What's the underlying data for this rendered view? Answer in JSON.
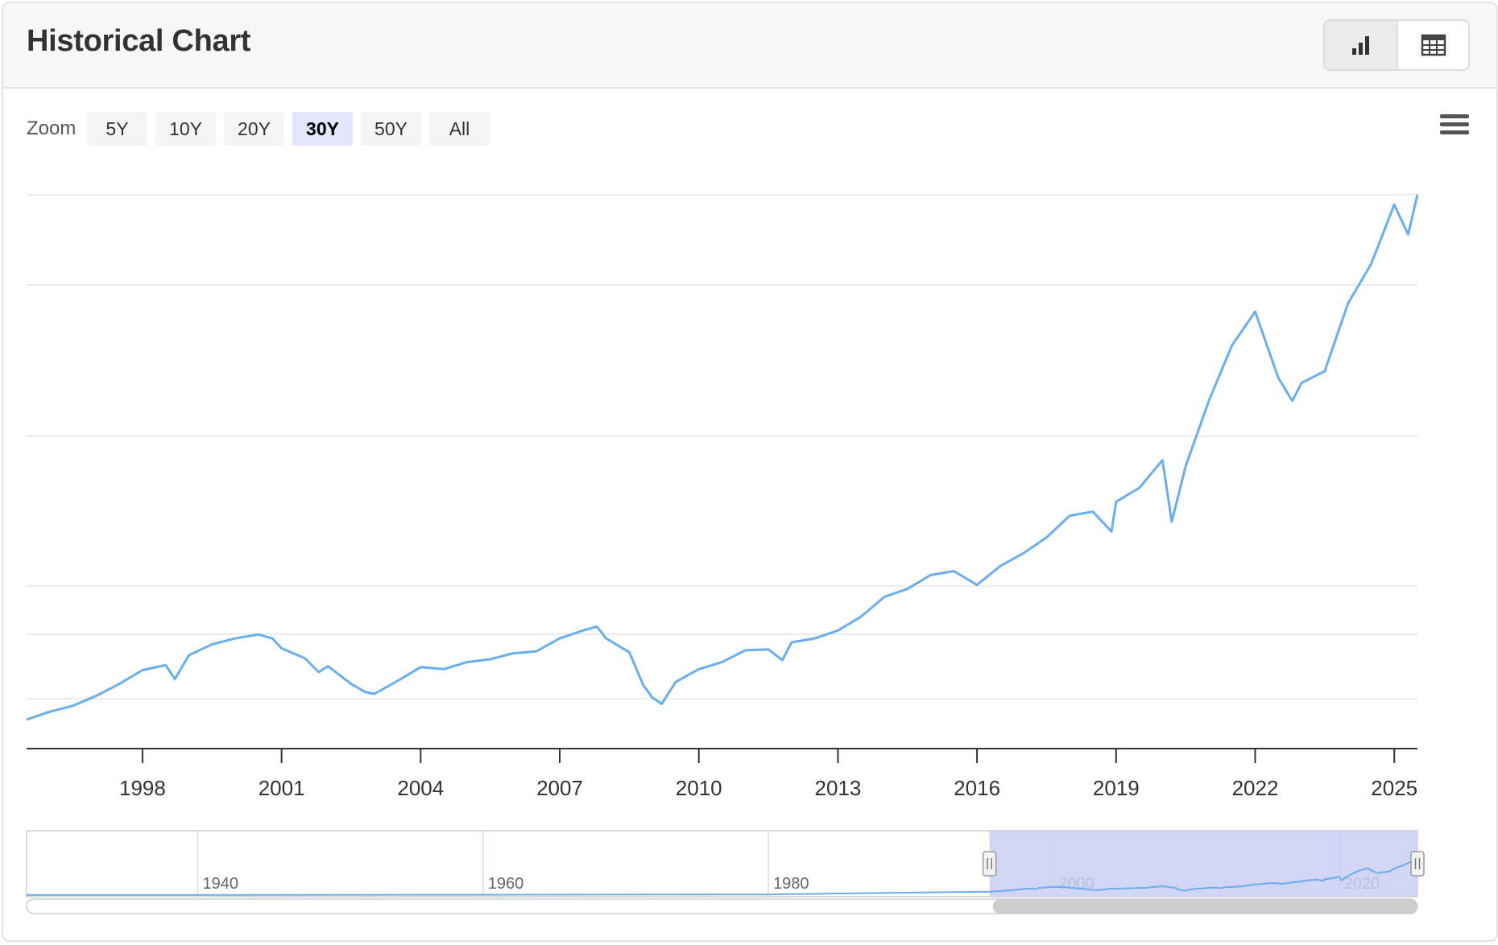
{
  "header": {
    "title": "Historical Chart",
    "view_buttons": [
      {
        "name": "chart-view",
        "icon": "bar-chart-icon"
      },
      {
        "name": "table-view",
        "icon": "table-icon"
      }
    ]
  },
  "zoom": {
    "label": "Zoom",
    "options": [
      "5Y",
      "10Y",
      "20Y",
      "30Y",
      "50Y",
      "All"
    ],
    "selected": "30Y"
  },
  "menu": {
    "icon": "hamburger-menu-icon"
  },
  "chart_data": {
    "type": "line",
    "title": "",
    "xlabel": "",
    "ylabel": "",
    "grid": true,
    "y_tick_labels_visible": false,
    "series_color": "#6aaeee",
    "x_tick_labels": [
      "1998",
      "2001",
      "2004",
      "2007",
      "2010",
      "2013",
      "2016",
      "2019",
      "2022",
      "2025"
    ],
    "x_range": [
      1995.5,
      2025.5
    ],
    "series": [
      {
        "x": [
          1995.5,
          1996.0,
          1996.5,
          1997.0,
          1997.5,
          1998.0,
          1998.5,
          1998.7,
          1999.0,
          1999.5,
          2000.0,
          2000.5,
          2000.8,
          2001.0,
          2001.5,
          2001.8,
          2002.0,
          2002.5,
          2002.8,
          2003.0,
          2003.5,
          2004.0,
          2004.5,
          2005.0,
          2005.5,
          2006.0,
          2006.5,
          2007.0,
          2007.5,
          2007.8,
          2008.0,
          2008.5,
          2008.8,
          2009.0,
          2009.2,
          2009.5,
          2010.0,
          2010.5,
          2011.0,
          2011.5,
          2011.8,
          2012.0,
          2012.5,
          2013.0,
          2013.5,
          2014.0,
          2014.5,
          2015.0,
          2015.5,
          2016.0,
          2016.5,
          2017.0,
          2017.5,
          2018.0,
          2018.5,
          2018.9,
          2019.0,
          2019.5,
          2020.0,
          2020.2,
          2020.5,
          2021.0,
          2021.5,
          2022.0,
          2022.5,
          2022.8,
          2023.0,
          2023.5,
          2024.0,
          2024.5,
          2025.0,
          2025.3,
          2025.5
        ],
        "y": [
          600,
          680,
          740,
          840,
          960,
          1100,
          1150,
          1010,
          1250,
          1360,
          1420,
          1460,
          1420,
          1320,
          1220,
          1080,
          1140,
          960,
          880,
          860,
          990,
          1130,
          1110,
          1180,
          1210,
          1270,
          1290,
          1420,
          1500,
          1540,
          1420,
          1280,
          950,
          820,
          760,
          980,
          1110,
          1180,
          1300,
          1310,
          1200,
          1380,
          1420,
          1500,
          1640,
          1840,
          1920,
          2060,
          2100,
          1960,
          2150,
          2280,
          2440,
          2660,
          2700,
          2500,
          2800,
          2940,
          3220,
          2600,
          3160,
          3820,
          4380,
          4720,
          4050,
          3820,
          4000,
          4120,
          4800,
          5200,
          5800,
          5500,
          5900
        ]
      }
    ],
    "navigator": {
      "x_tick_labels": [
        "1940",
        "1960",
        "1980",
        "2000",
        "2020"
      ],
      "x_range": [
        1928,
        2025.5
      ],
      "selected_range": [
        1995.5,
        2025.5
      ]
    }
  }
}
